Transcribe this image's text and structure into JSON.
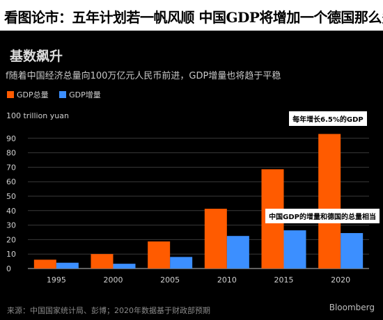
{
  "headline": "看图论市：五年计划若一帆风顺 中国GDP将增加一个德国那么多",
  "chart_data": {
    "type": "bar",
    "title": "基数飙升",
    "subtitle": "f随着中国经济总量向100万亿元人民币前进，GDP增量也将趋于平稳",
    "ylabel": "100 trillion yuan",
    "categories": [
      "1995",
      "2000",
      "2005",
      "2010",
      "2015",
      "2020"
    ],
    "series": [
      {
        "name": "GDP总量",
        "color": "#ff5b00",
        "values": [
          6.1,
          10.0,
          18.7,
          41.3,
          68.6,
          93.0
        ]
      },
      {
        "name": "GDP增量",
        "color": "#3c8fff",
        "values": [
          4.0,
          3.3,
          8.0,
          22.5,
          26.4,
          24.5
        ]
      }
    ],
    "yticks": [
      "0",
      "10",
      "20",
      "30",
      "40",
      "50",
      "60",
      "70",
      "80",
      "90"
    ],
    "ylim": [
      0,
      100
    ],
    "grid": true,
    "legend": "top-left",
    "annotations": [
      {
        "text": "每年增长6.5%的GDP"
      },
      {
        "text": "中国GDP的增量和德国的总量相当"
      }
    ]
  },
  "footer": {
    "source": "来源：中国国家统计局、彭博；2020年数据基于财政部预期",
    "brand": "Bloomberg"
  }
}
